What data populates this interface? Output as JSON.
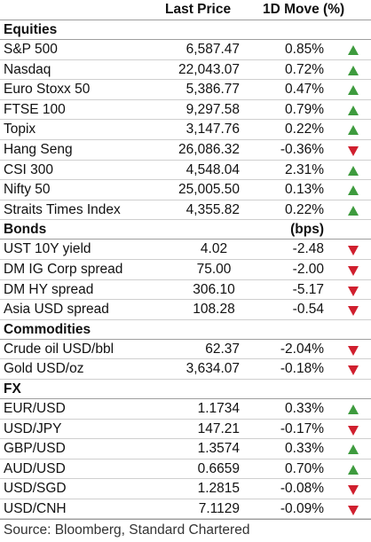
{
  "header": {
    "last_price": "Last Price",
    "move": "1D Move (%)"
  },
  "colors": {
    "up": "#3e9b3e",
    "down": "#d01f2e"
  },
  "sections": [
    {
      "title": "Equities",
      "unit": "",
      "price_align": "right",
      "rows": [
        {
          "name": "S&P 500",
          "price": "6,587.47",
          "move": "0.85%",
          "dir": "up"
        },
        {
          "name": "Nasdaq",
          "price": "22,043.07",
          "move": "0.72%",
          "dir": "up"
        },
        {
          "name": "Euro Stoxx 50",
          "price": "5,386.77",
          "move": "0.47%",
          "dir": "up"
        },
        {
          "name": "FTSE 100",
          "price": "9,297.58",
          "move": "0.79%",
          "dir": "up"
        },
        {
          "name": "Topix",
          "price": "3,147.76",
          "move": "0.22%",
          "dir": "up"
        },
        {
          "name": "Hang Seng",
          "price": "26,086.32",
          "move": "-0.36%",
          "dir": "down"
        },
        {
          "name": "CSI 300",
          "price": "4,548.04",
          "move": "2.31%",
          "dir": "up"
        },
        {
          "name": "Nifty 50",
          "price": "25,005.50",
          "move": "0.13%",
          "dir": "up"
        },
        {
          "name": "Straits Times Index",
          "price": "4,355.82",
          "move": "0.22%",
          "dir": "up"
        }
      ]
    },
    {
      "title": "Bonds",
      "unit": "(bps)",
      "price_align": "center",
      "rows": [
        {
          "name": "UST 10Y yield",
          "price": "4.02",
          "move": "-2.48",
          "dir": "down"
        },
        {
          "name": "DM IG Corp spread",
          "price": "75.00",
          "move": "-2.00",
          "dir": "down"
        },
        {
          "name": "DM HY spread",
          "price": "306.10",
          "move": "-5.17",
          "dir": "down"
        },
        {
          "name": "Asia USD spread",
          "price": "108.28",
          "move": "-0.54",
          "dir": "down"
        }
      ]
    },
    {
      "title": "Commodities",
      "unit": "",
      "price_align": "right",
      "rows": [
        {
          "name": "Crude oil USD/bbl",
          "price": "62.37",
          "move": "-2.04%",
          "dir": "down"
        },
        {
          "name": "Gold USD/oz",
          "price": "3,634.07",
          "move": "-0.18%",
          "dir": "down"
        }
      ]
    },
    {
      "title": "FX",
      "unit": "",
      "price_align": "right",
      "rows": [
        {
          "name": "EUR/USD",
          "price": "1.1734",
          "move": "0.33%",
          "dir": "up"
        },
        {
          "name": "USD/JPY",
          "price": "147.21",
          "move": "-0.17%",
          "dir": "down"
        },
        {
          "name": "GBP/USD",
          "price": "1.3574",
          "move": "0.33%",
          "dir": "up"
        },
        {
          "name": "AUD/USD",
          "price": "0.6659",
          "move": "0.70%",
          "dir": "up"
        },
        {
          "name": "USD/SGD",
          "price": "1.2815",
          "move": "-0.08%",
          "dir": "down"
        },
        {
          "name": "USD/CNH",
          "price": "7.1129",
          "move": "-0.09%",
          "dir": "down"
        }
      ]
    }
  ],
  "footer": {
    "source": "Source: Bloomberg, Standard Chartered"
  }
}
